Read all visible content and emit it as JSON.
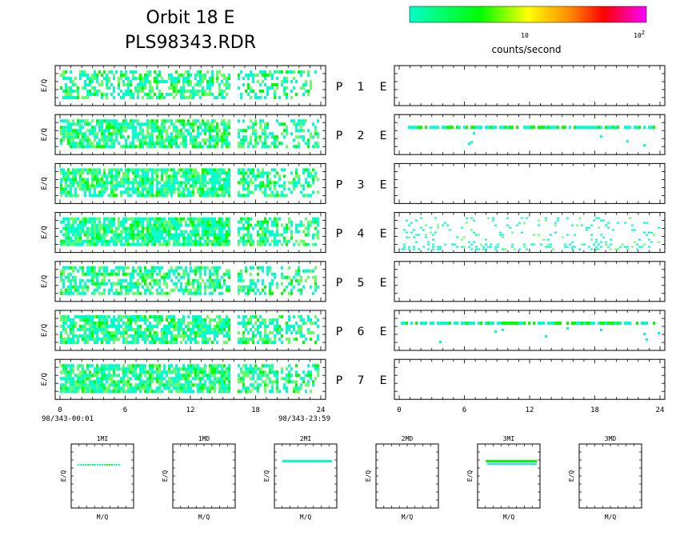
{
  "title_line1": "Orbit 18 E",
  "title_line2": "PLS98343.RDR",
  "colorbar": {
    "label": "counts/second",
    "tick_10": "10",
    "tick_100_base": "10",
    "tick_100_exp": "2",
    "scale": "log",
    "colors": [
      "#00ffc8",
      "#00ff00",
      "#ffff00",
      "#ff8800",
      "#ff0000",
      "#ff00ff"
    ]
  },
  "colors": {
    "cyan": "#00ffcc",
    "lightgreen": "#66ff66",
    "green": "#00ff00"
  },
  "left_x_axis": {
    "ticks": [
      "0",
      "6",
      "12",
      "18",
      "24"
    ],
    "start_label": "98/343-00:01",
    "end_label": "98/343-23:59"
  },
  "right_x_axis": {
    "ticks": [
      "0",
      "6",
      "12",
      "18",
      "24"
    ]
  },
  "ylabel": "E/Q",
  "xlabel_small": "M/Q",
  "panel_rows": [
    {
      "p": "P",
      "n": "1",
      "e": "E"
    },
    {
      "p": "P",
      "n": "2",
      "e": "E"
    },
    {
      "p": "P",
      "n": "3",
      "e": "E"
    },
    {
      "p": "P",
      "n": "4",
      "e": "E"
    },
    {
      "p": "P",
      "n": "5",
      "e": "E"
    },
    {
      "p": "P",
      "n": "6",
      "e": "E"
    },
    {
      "p": "P",
      "n": "7",
      "e": "E"
    }
  ],
  "small_panels": [
    {
      "title": "1MI",
      "has_data": true
    },
    {
      "title": "1MD",
      "has_data": false
    },
    {
      "title": "2MI",
      "has_data": true
    },
    {
      "title": "2MD",
      "has_data": false
    },
    {
      "title": "3MI",
      "has_data": true
    },
    {
      "title": "3MD",
      "has_data": false
    }
  ],
  "chart_data": [
    {
      "type": "heatmap",
      "description_scope": "left column spectrograms P1-P7 (time in hours vs E/Q), data gap near 15.5-16.3 h",
      "x_range": [
        0,
        24
      ],
      "gap_hours": [
        15.6,
        16.3
      ],
      "data_end_hour": 24,
      "density": [
        0.55,
        0.75,
        0.8,
        0.85,
        0.6,
        0.75,
        0.8
      ]
    },
    {
      "type": "heatmap",
      "description_scope": "right column spectrograms P1-P7",
      "x_range": [
        0,
        24
      ],
      "density": [
        0,
        0.25,
        0,
        0.2,
        0,
        0.3,
        0
      ]
    }
  ]
}
